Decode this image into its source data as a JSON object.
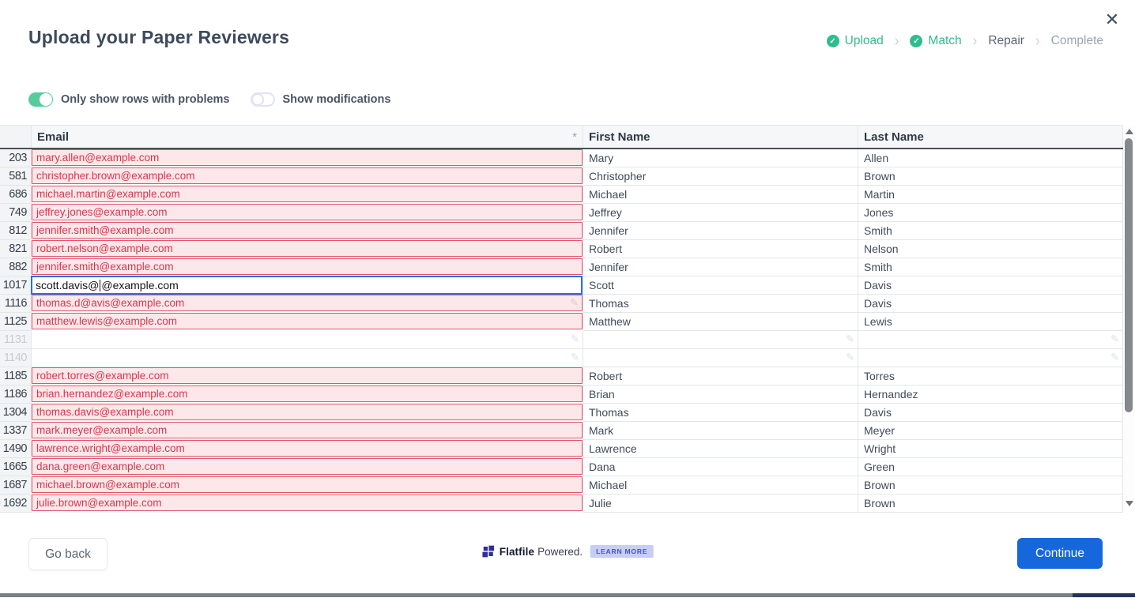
{
  "window": {
    "close_icon": "✕"
  },
  "header": {
    "title": "Upload your Paper Reviewers"
  },
  "stepper": {
    "steps": [
      {
        "label": "Upload",
        "state": "done"
      },
      {
        "label": "Match",
        "state": "done"
      },
      {
        "label": "Repair",
        "state": "current"
      },
      {
        "label": "Complete",
        "state": "upcoming"
      }
    ]
  },
  "toolbar": {
    "toggles": [
      {
        "label": "Only show rows with problems",
        "on": true
      },
      {
        "label": "Show modifications",
        "on": false
      }
    ]
  },
  "table": {
    "columns": [
      {
        "label": "Email",
        "required_marker": "*"
      },
      {
        "label": "First Name"
      },
      {
        "label": "Last Name"
      }
    ],
    "rows": [
      {
        "num": "203",
        "email": "mary.allen@example.com",
        "first": "Mary",
        "last": "Allen",
        "state": "error"
      },
      {
        "num": "581",
        "email": "christopher.brown@example.com",
        "first": "Christopher",
        "last": "Brown",
        "state": "error"
      },
      {
        "num": "686",
        "email": "michael.martin@example.com",
        "first": "Michael",
        "last": "Martin",
        "state": "error"
      },
      {
        "num": "749",
        "email": "jeffrey.jones@example.com",
        "first": "Jeffrey",
        "last": "Jones",
        "state": "error"
      },
      {
        "num": "812",
        "email": "jennifer.smith@example.com",
        "first": "Jennifer",
        "last": "Smith",
        "state": "error"
      },
      {
        "num": "821",
        "email": "robert.nelson@example.com",
        "first": "Robert",
        "last": "Nelson",
        "state": "error"
      },
      {
        "num": "882",
        "email": "jennifer.smith@example.com",
        "first": "Jennifer",
        "last": "Smith",
        "state": "error"
      },
      {
        "num": "1017",
        "email": "scott.davis@@example.com",
        "email_before_caret": "scott.davis@",
        "email_after_caret": "@example.com",
        "first": "Scott",
        "last": "Davis",
        "state": "editing"
      },
      {
        "num": "1116",
        "email": "thomas.d@avis@example.com",
        "first": "Thomas",
        "last": "Davis",
        "state": "error",
        "email_pencil": true
      },
      {
        "num": "1125",
        "email": "matthew.lewis@example.com",
        "first": "Matthew",
        "last": "Lewis",
        "state": "error"
      },
      {
        "num": "1131",
        "email": "",
        "first": "",
        "last": "",
        "state": "empty",
        "pencils": true
      },
      {
        "num": "1140",
        "email": "",
        "first": "",
        "last": "",
        "state": "empty",
        "pencils": true
      },
      {
        "num": "1185",
        "email": "robert.torres@example.com",
        "first": "Robert",
        "last": "Torres",
        "state": "error"
      },
      {
        "num": "1186",
        "email": "brian.hernandez@example.com",
        "first": "Brian",
        "last": "Hernandez",
        "state": "error"
      },
      {
        "num": "1304",
        "email": "thomas.davis@example.com",
        "first": "Thomas",
        "last": "Davis",
        "state": "error"
      },
      {
        "num": "1337",
        "email": "mark.meyer@example.com",
        "first": "Mark",
        "last": "Meyer",
        "state": "error"
      },
      {
        "num": "1490",
        "email": "lawrence.wright@example.com",
        "first": "Lawrence",
        "last": "Wright",
        "state": "error"
      },
      {
        "num": "1665",
        "email": "dana.green@example.com",
        "first": "Dana",
        "last": "Green",
        "state": "error"
      },
      {
        "num": "1687",
        "email": "michael.brown@example.com",
        "first": "Michael",
        "last": "Brown",
        "state": "error"
      },
      {
        "num": "1692",
        "email": "julie.brown@example.com",
        "first": "Julie",
        "last": "Brown",
        "state": "error"
      }
    ]
  },
  "footer": {
    "go_back_label": "Go back",
    "continue_label": "Continue",
    "brand": {
      "name": "Flatfile",
      "suffix": "Powered.",
      "learn_more": "LEARN MORE"
    }
  },
  "colors": {
    "accent_green": "#2ebd8c",
    "toggle_green": "#57cb9c",
    "error_text": "#d7364e",
    "error_border": "#e0556a",
    "error_bg": "#fce8ea",
    "edit_border": "#2e6ee2",
    "primary_blue": "#1767dc",
    "brand_indigo": "#2d2fa0",
    "title_text": "#3d4a5c"
  }
}
